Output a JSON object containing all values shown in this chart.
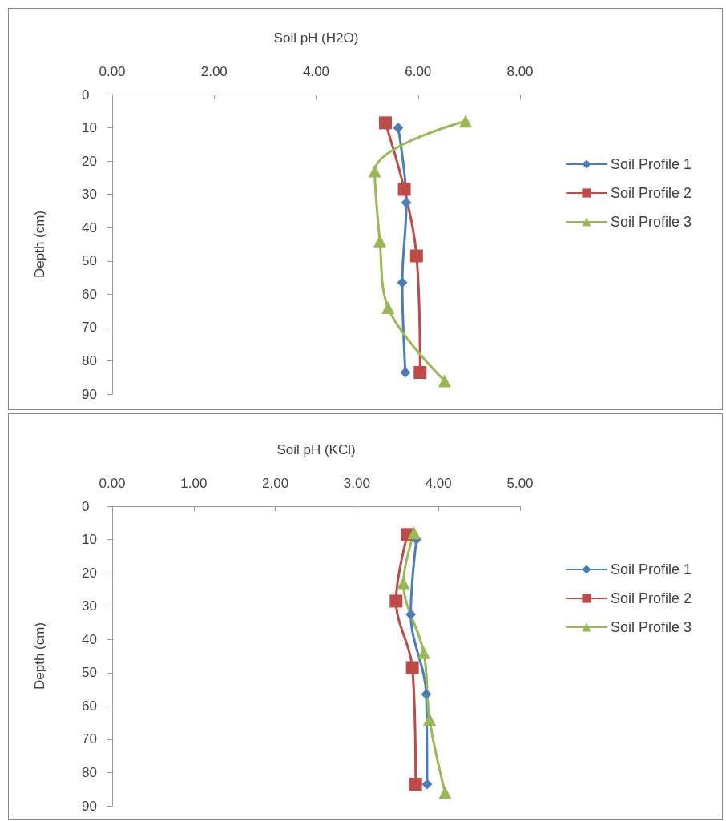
{
  "chart_data": [
    {
      "type": "line",
      "xlabel": "Soil pH (H2O)",
      "ylabel": "Depth (cm)",
      "xlim": [
        0,
        8
      ],
      "xticks": [
        {
          "value": 0,
          "label": "0.00"
        },
        {
          "value": 2,
          "label": "2.00"
        },
        {
          "value": 4,
          "label": "4.00"
        },
        {
          "value": 6,
          "label": "6.00"
        },
        {
          "value": 8,
          "label": "8.00"
        }
      ],
      "ylim": [
        90,
        0
      ],
      "yticks": [
        0,
        10,
        20,
        30,
        40,
        50,
        60,
        70,
        80,
        90
      ],
      "grid": false,
      "legend": "right",
      "line_style": "solid",
      "series": [
        {
          "name": "Soil Profile 1",
          "color": "#4a7ebb",
          "marker": "diamond",
          "x": [
            5.61,
            5.77,
            5.69,
            5.75
          ],
          "values": [
            10,
            32.5,
            56.5,
            83.5
          ]
        },
        {
          "name": "Soil Profile 2",
          "color": "#be4b48",
          "marker": "square",
          "x": [
            5.36,
            5.73,
            5.97,
            6.04
          ],
          "values": [
            8.5,
            28.5,
            48.5,
            83.5
          ]
        },
        {
          "name": "Soil Profile 3",
          "color": "#98b954",
          "marker": "triangle",
          "x": [
            6.93,
            5.15,
            5.25,
            5.41,
            6.52
          ],
          "values": [
            8,
            23,
            44,
            64,
            86
          ]
        }
      ]
    },
    {
      "type": "line",
      "xlabel": "Soil pH (KCl)",
      "ylabel": "Depth (cm)",
      "xlim": [
        0,
        5
      ],
      "xticks": [
        {
          "value": 0,
          "label": "0.00"
        },
        {
          "value": 1,
          "label": "1.00"
        },
        {
          "value": 2,
          "label": "2.00"
        },
        {
          "value": 3,
          "label": "3.00"
        },
        {
          "value": 4,
          "label": "4.00"
        },
        {
          "value": 5,
          "label": "5.00"
        }
      ],
      "ylim": [
        90,
        0
      ],
      "yticks": [
        0,
        10,
        20,
        30,
        40,
        50,
        60,
        70,
        80,
        90
      ],
      "grid": false,
      "legend": "right",
      "line_style": "solid",
      "series": [
        {
          "name": "Soil Profile 1",
          "color": "#4a7ebb",
          "marker": "diamond",
          "x": [
            3.73,
            3.66,
            3.85,
            3.86
          ],
          "values": [
            10,
            32.5,
            56.5,
            83.5
          ]
        },
        {
          "name": "Soil Profile 2",
          "color": "#be4b48",
          "marker": "square",
          "x": [
            3.62,
            3.48,
            3.68,
            3.72
          ],
          "values": [
            8.5,
            28.5,
            48.5,
            83.5
          ]
        },
        {
          "name": "Soil Profile 3",
          "color": "#98b954",
          "marker": "triangle",
          "x": [
            3.7,
            3.57,
            3.82,
            3.89,
            4.08
          ],
          "values": [
            8,
            23,
            44,
            64,
            86
          ]
        }
      ]
    }
  ]
}
